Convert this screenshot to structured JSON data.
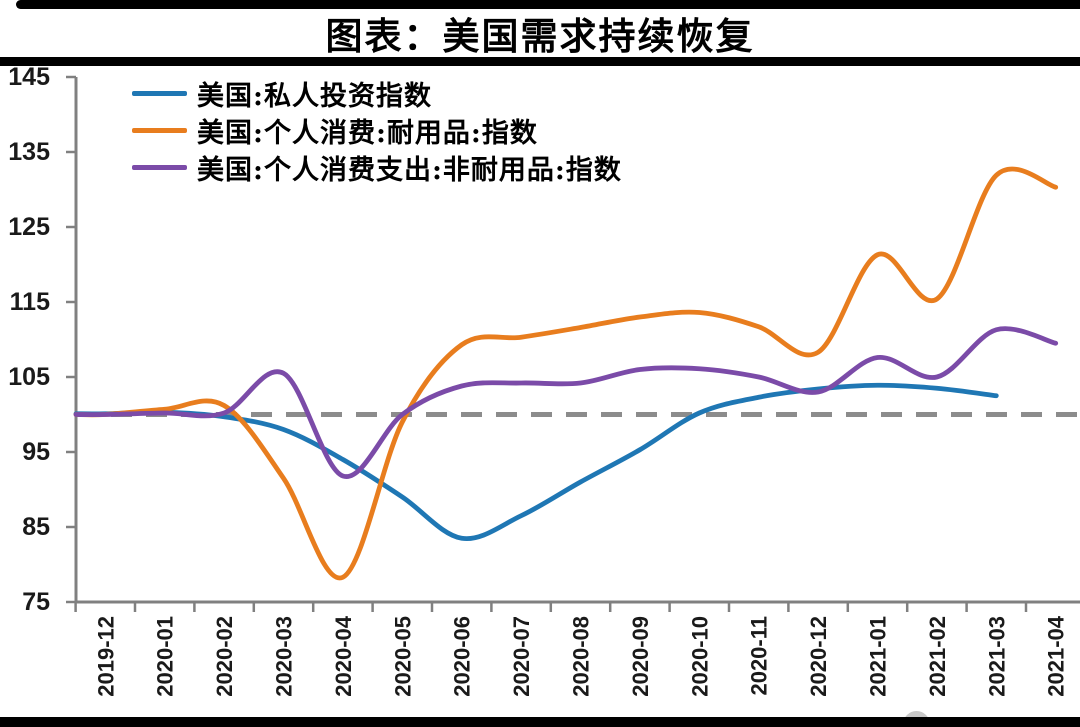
{
  "header": {
    "title": "图表：美国需求持续恢复"
  },
  "colors": {
    "axis": "#808080",
    "tick_label": "#1a1a1a",
    "baseline_dash": "#8c8c8c",
    "frame_bars": "#000000",
    "logo_blob": "#c9c9c9"
  },
  "chart_data": {
    "type": "line",
    "title": "图表：美国需求持续恢复",
    "xlabel": "",
    "ylabel": "",
    "ylim": [
      75,
      145
    ],
    "y_ticks": [
      75,
      85,
      95,
      105,
      115,
      125,
      135,
      145
    ],
    "grid": false,
    "legend_position": "top-left",
    "baseline": {
      "value": 100,
      "style": "dashed",
      "color": "#8c8c8c"
    },
    "x_labels": [
      "2019-12",
      "2020-01",
      "2020-02",
      "2020-03",
      "2020-04",
      "2020-05",
      "2020-06",
      "2020-07",
      "2020-08",
      "2020-09",
      "2020-10",
      "2020-11",
      "2020-12",
      "2021-01",
      "2021-02",
      "2021-03",
      "2021-04"
    ],
    "series": [
      {
        "name": "美国:私人投资指数",
        "color": "#1F77B4",
        "values": [
          100.1,
          100.3,
          99.7,
          98.0,
          94.0,
          89.0,
          83.5,
          86.5,
          91.0,
          95.3,
          100.2,
          102.3,
          103.4,
          103.9,
          103.5,
          102.5,
          null
        ]
      },
      {
        "name": "美国:个人消费:耐用品:指数",
        "color": "#E87D1E",
        "values": [
          100.0,
          100.7,
          101.2,
          91.5,
          78.3,
          99.0,
          109.3,
          110.3,
          111.6,
          113.0,
          113.6,
          111.7,
          108.3,
          121.3,
          115.4,
          131.9,
          130.3
        ]
      },
      {
        "name": "美国:个人消费支出:非耐用品:指数",
        "color": "#7B4BA8",
        "values": [
          100.0,
          100.2,
          100.2,
          105.5,
          91.8,
          100.0,
          103.8,
          104.2,
          104.2,
          106.0,
          106.1,
          105.0,
          103.0,
          107.6,
          105.0,
          111.3,
          109.5
        ]
      }
    ]
  }
}
